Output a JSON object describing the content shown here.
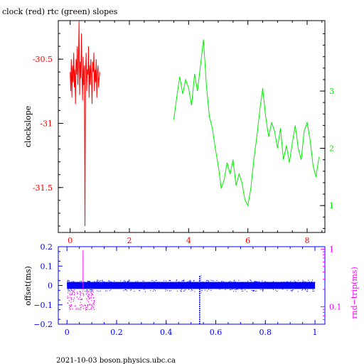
{
  "title": "clock (red) rtc (green) slopes",
  "footer": "2021-10-03  boson.physics.ubc.ca",
  "colors": {
    "clock": "#ff0000",
    "rtc": "#00ee00",
    "offset": "#0000ff",
    "roundtrip": "#ff00ff",
    "axis": "#000000"
  },
  "chart_data": [
    {
      "type": "line",
      "ylabel": "clockslope",
      "x_ticks": [
        "0",
        "2",
        "4",
        "6",
        "8"
      ],
      "left_y_ticks": [
        "-30.5",
        "-31",
        "-31.5"
      ],
      "right_y_ticks": [
        "3",
        "2",
        "1"
      ],
      "xlim": [
        -0.4,
        8.6
      ],
      "ylim_left": [
        -31.85,
        -30.2
      ],
      "ylim_right": [
        0.53,
        4.23
      ],
      "series": [
        {
          "name": "clock",
          "axis": "left",
          "x": [
            0.0,
            0.02,
            0.04,
            0.06,
            0.08,
            0.1,
            0.12,
            0.14,
            0.16,
            0.18,
            0.2,
            0.22,
            0.24,
            0.26,
            0.28,
            0.3,
            0.32,
            0.34,
            0.36,
            0.38,
            0.4,
            0.42,
            0.44,
            0.46,
            0.48,
            0.5,
            0.52,
            0.54,
            0.56,
            0.58,
            0.6,
            0.62,
            0.64,
            0.66,
            0.68,
            0.7,
            0.72,
            0.74,
            0.76,
            0.78,
            0.8,
            0.82,
            0.84,
            0.86,
            0.88,
            0.9,
            0.92,
            0.94,
            0.96,
            0.98,
            1.0
          ],
          "values": [
            -30.6,
            -30.75,
            -30.5,
            -30.8,
            -30.55,
            -30.68,
            -30.45,
            -30.72,
            -30.58,
            -30.85,
            -30.5,
            -30.62,
            -30.4,
            -30.7,
            -30.55,
            -30.2,
            -30.78,
            -30.52,
            -30.65,
            -30.3,
            -30.6,
            -30.82,
            -30.48,
            -30.7,
            -30.55,
            -31.8,
            -30.6,
            -30.45,
            -30.75,
            -30.58,
            -30.62,
            -30.4,
            -30.8,
            -30.55,
            -30.7,
            -30.5,
            -30.65,
            -30.85,
            -30.52,
            -30.6,
            -30.45,
            -30.75,
            -30.58,
            -30.68,
            -30.5,
            -30.8,
            -30.6,
            -30.55,
            -30.72,
            -30.65,
            -30.6
          ]
        },
        {
          "name": "rtc",
          "axis": "right",
          "x": [
            3.5,
            3.6,
            3.7,
            3.8,
            3.9,
            4.0,
            4.1,
            4.2,
            4.3,
            4.4,
            4.5,
            4.6,
            4.7,
            4.8,
            4.9,
            5.0,
            5.1,
            5.2,
            5.3,
            5.4,
            5.5,
            5.6,
            5.7,
            5.8,
            5.9,
            6.0,
            6.1,
            6.2,
            6.3,
            6.4,
            6.5,
            6.6,
            6.7,
            6.8,
            6.9,
            7.0,
            7.1,
            7.2,
            7.3,
            7.4,
            7.5,
            7.6,
            7.7,
            7.8,
            7.9,
            8.0,
            8.1,
            8.2,
            8.3,
            8.4
          ],
          "values": [
            2.5,
            2.9,
            3.25,
            2.95,
            3.2,
            3.05,
            2.75,
            3.3,
            3.0,
            3.45,
            3.9,
            3.1,
            2.55,
            2.35,
            2.0,
            1.7,
            1.3,
            1.45,
            1.75,
            1.55,
            1.8,
            1.35,
            1.55,
            1.4,
            1.1,
            1.0,
            1.3,
            1.8,
            2.2,
            2.65,
            3.05,
            2.55,
            2.2,
            2.45,
            2.3,
            2.0,
            2.35,
            1.8,
            2.05,
            1.75,
            2.1,
            2.4,
            2.0,
            1.8,
            2.3,
            2.45,
            2.15,
            1.7,
            1.5,
            1.85
          ]
        }
      ]
    },
    {
      "type": "scatter",
      "ylabel": "offset(ms)",
      "right_ylabel": "rnd−trip(ms)",
      "x_ticks": [
        "0",
        "0.2",
        "0.4",
        "0.6",
        "0.8",
        "1"
      ],
      "left_y_ticks": [
        "0.2",
        "0.1",
        "0",
        "−0.1",
        "−0.2"
      ],
      "right_y_ticks": [
        "1",
        "0.1"
      ],
      "xlim": [
        -0.035,
        1.04
      ],
      "ylim_left": [
        -0.2,
        0.2
      ],
      "right_axis_scale": "log",
      "ylim_right": [
        0.05,
        1.1
      ],
      "series": [
        {
          "name": "offset",
          "axis": "left",
          "band_x": [
            0.0,
            1.0
          ],
          "band_center": 0.0,
          "band_halfwidth": 0.018,
          "spike_x": 0.535,
          "spike_range": [
            -0.2,
            0.05
          ]
        },
        {
          "name": "roundtrip",
          "axis": "right",
          "x_range": [
            0.0,
            0.11
          ],
          "level_range": [
            0.09,
            0.2
          ],
          "peak": {
            "x": 0.065,
            "value": 0.95
          }
        }
      ]
    }
  ]
}
